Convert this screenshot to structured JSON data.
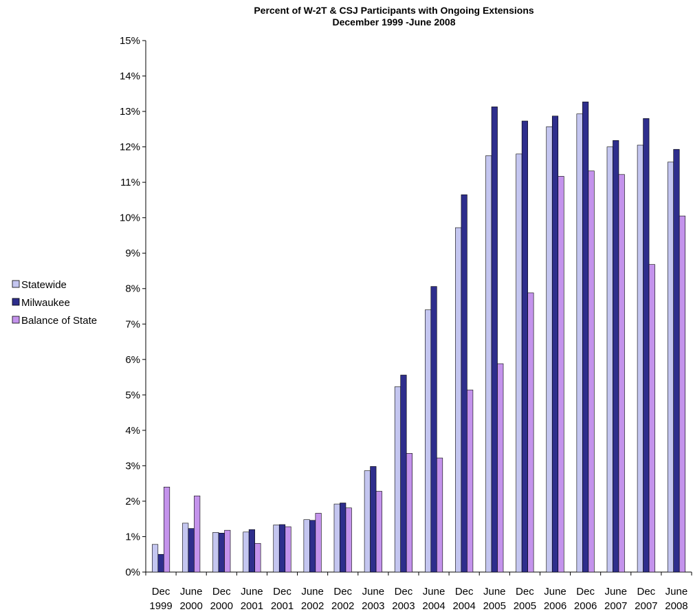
{
  "chart_data": {
    "type": "bar",
    "title": "Percent of W-2T & CSJ Participants with Ongoing Extensions",
    "subtitle": "December 1999 -June 2008",
    "xlabel": "",
    "ylabel": "",
    "ylim": [
      0,
      15
    ],
    "yticks": [
      "0%",
      "1%",
      "2%",
      "3%",
      "4%",
      "5%",
      "6%",
      "7%",
      "8%",
      "9%",
      "10%",
      "11%",
      "12%",
      "13%",
      "14%",
      "15%"
    ],
    "grid": false,
    "legend_position": "left",
    "categories": [
      {
        "month": "Dec",
        "year": "1999"
      },
      {
        "month": "June",
        "year": "2000"
      },
      {
        "month": "Dec",
        "year": "2000"
      },
      {
        "month": "June",
        "year": "2001"
      },
      {
        "month": "Dec",
        "year": "2001"
      },
      {
        "month": "June",
        "year": "2002"
      },
      {
        "month": "Dec",
        "year": "2002"
      },
      {
        "month": "June",
        "year": "2003"
      },
      {
        "month": "Dec",
        "year": "2003"
      },
      {
        "month": "June",
        "year": "2004"
      },
      {
        "month": "Dec",
        "year": "2004"
      },
      {
        "month": "June",
        "year": "2005"
      },
      {
        "month": "Dec",
        "year": "2005"
      },
      {
        "month": "June",
        "year": "2006"
      },
      {
        "month": "Dec",
        "year": "2006"
      },
      {
        "month": "June",
        "year": "2007"
      },
      {
        "month": "Dec",
        "year": "2007"
      },
      {
        "month": "June",
        "year": "2008"
      }
    ],
    "series": [
      {
        "name": "Statewide",
        "color": "#c4c6f0",
        "values": [
          0.78,
          1.38,
          1.12,
          1.13,
          1.33,
          1.48,
          1.92,
          2.86,
          5.23,
          7.4,
          9.72,
          11.75,
          11.8,
          12.57,
          12.93,
          12.0,
          12.05,
          11.57
        ]
      },
      {
        "name": "Milwaukee",
        "color": "#2e2e8c",
        "values": [
          0.5,
          1.23,
          1.1,
          1.2,
          1.34,
          1.46,
          1.95,
          2.98,
          5.56,
          8.06,
          10.65,
          13.13,
          12.73,
          12.87,
          13.27,
          12.18,
          12.8,
          11.93
        ]
      },
      {
        "name": "Balance of State",
        "color": "#c493ec",
        "values": [
          2.4,
          2.15,
          1.18,
          0.81,
          1.28,
          1.66,
          1.81,
          2.28,
          3.35,
          3.22,
          5.14,
          5.88,
          7.88,
          11.17,
          11.32,
          11.22,
          8.68,
          10.05
        ]
      }
    ]
  }
}
